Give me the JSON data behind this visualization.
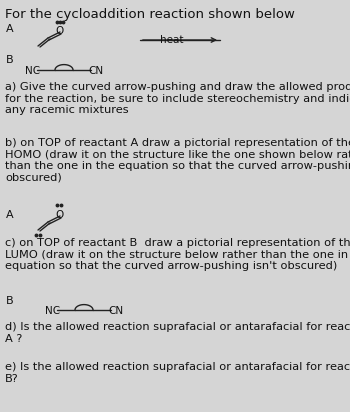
{
  "bg_color": "#d5d5d5",
  "title": "For the cycloaddition reaction shown below",
  "title_fontsize": 9.5,
  "body_fontsize": 8.2,
  "small_fontsize": 7.5,
  "text_color": "#111111",
  "section_a_label": "a) Give the curved arrow-pushing and draw the allowed product\nfor the reaction, be sure to include stereochemistry and indicate\nany racemic mixtures",
  "section_b_label": "b) on TOP of reactant A draw a pictorial representation of the\nHOMO (draw it on the structure like the one shown below rather\nthan the one in the equation so that the curved arrow-pushing isn't\nobscured)",
  "section_c_label": "c) on TOP of reactant B  draw a pictorial representation of the\nLUMO (draw it on the structure below rather than the one in the\nequation so that the curved arrow-pushing isn't obscured)",
  "section_d_label": "d) Is the allowed reaction suprafacial or antarafacial for reactant\nA ?",
  "section_e_label": "e) Is the allowed reaction suprafacial or antarafacial for reactant\nB?",
  "heat_label": "heat",
  "A_label": "A",
  "B_label": "B",
  "NC_label": "NC",
  "CN_label": "CN",
  "O_label": "O"
}
